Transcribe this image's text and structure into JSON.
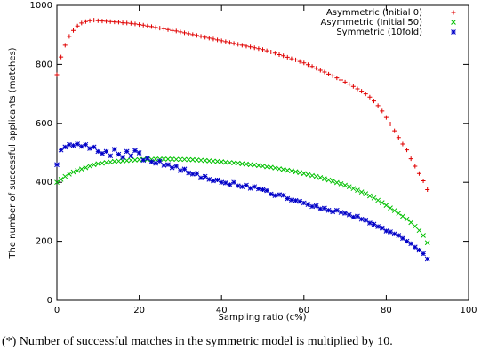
{
  "chart_data": {
    "type": "scatter",
    "xlabel": "Sampling ratio (c%)",
    "ylabel": "The number of successful applicants (matches)",
    "caption": "(*) Number of successful matches in the symmetric model is multiplied by 10.",
    "xlim": [
      0,
      100
    ],
    "xticks": [
      0,
      20,
      40,
      60,
      80,
      100
    ],
    "ylim": [
      0,
      1000
    ],
    "yticks": [
      0,
      200,
      400,
      600,
      800,
      1000
    ],
    "legend": "top-right",
    "x": [
      0,
      1,
      2,
      3,
      4,
      5,
      6,
      7,
      8,
      9,
      10,
      11,
      12,
      13,
      14,
      15,
      16,
      17,
      18,
      19,
      20,
      21,
      22,
      23,
      24,
      25,
      26,
      27,
      28,
      29,
      30,
      31,
      32,
      33,
      34,
      35,
      36,
      37,
      38,
      39,
      40,
      41,
      42,
      43,
      44,
      45,
      46,
      47,
      48,
      49,
      50,
      51,
      52,
      53,
      54,
      55,
      56,
      57,
      58,
      59,
      60,
      61,
      62,
      63,
      64,
      65,
      66,
      67,
      68,
      69,
      70,
      71,
      72,
      73,
      74,
      75,
      76,
      77,
      78,
      79,
      80,
      81,
      82,
      83,
      84,
      85,
      86,
      87,
      88,
      89,
      90
    ],
    "series": [
      {
        "name": "Asymmetric (Initial 0)",
        "color": "#e00000",
        "marker": "plus",
        "values": [
          765,
          825,
          865,
          895,
          915,
          930,
          940,
          945,
          948,
          950,
          948,
          947,
          946,
          945,
          944,
          943,
          941,
          940,
          939,
          937,
          935,
          933,
          930,
          928,
          925,
          923,
          921,
          918,
          915,
          913,
          910,
          907,
          904,
          901,
          898,
          895,
          892,
          889,
          886,
          883,
          880,
          877,
          874,
          871,
          868,
          865,
          862,
          859,
          856,
          853,
          850,
          846,
          842,
          838,
          833,
          829,
          824,
          819,
          815,
          810,
          805,
          799,
          793,
          787,
          780,
          774,
          767,
          761,
          754,
          747,
          740,
          733,
          725,
          717,
          709,
          700,
          689,
          676,
          660,
          642,
          620,
          598,
          575,
          552,
          530,
          510,
          480,
          455,
          430,
          405,
          375
        ]
      },
      {
        "name": "Asymmetric (Initial 50)",
        "color": "#00c000",
        "marker": "cross",
        "values": [
          400,
          410,
          420,
          428,
          435,
          440,
          445,
          450,
          455,
          460,
          463,
          465,
          467,
          469,
          471,
          472,
          473,
          474,
          475,
          476,
          477,
          478,
          478,
          478,
          479,
          479,
          479,
          479,
          479,
          478,
          478,
          478,
          477,
          477,
          476,
          475,
          474,
          473,
          472,
          471,
          470,
          468,
          467,
          466,
          465,
          463,
          462,
          460,
          459,
          457,
          455,
          453,
          451,
          449,
          446,
          444,
          441,
          439,
          436,
          433,
          430,
          427,
          423,
          420,
          416,
          412,
          408,
          404,
          399,
          395,
          390,
          385,
          379,
          373,
          367,
          361,
          354,
          347,
          339,
          331,
          322,
          313,
          304,
          295,
          285,
          275,
          264,
          251,
          237,
          220,
          195
        ]
      },
      {
        "name": "Symmetric (10fold)",
        "color": "#0000c8",
        "marker": "star",
        "values": [
          460,
          510,
          520,
          528,
          525,
          530,
          522,
          528,
          515,
          520,
          505,
          498,
          505,
          490,
          512,
          495,
          485,
          505,
          490,
          508,
          500,
          475,
          482,
          470,
          465,
          472,
          458,
          460,
          450,
          455,
          440,
          445,
          432,
          428,
          430,
          415,
          420,
          410,
          405,
          408,
          400,
          398,
          392,
          400,
          388,
          385,
          390,
          380,
          385,
          378,
          375,
          372,
          360,
          355,
          358,
          356,
          345,
          340,
          338,
          335,
          330,
          325,
          318,
          320,
          310,
          312,
          305,
          300,
          305,
          298,
          295,
          290,
          282,
          285,
          275,
          272,
          262,
          258,
          250,
          245,
          235,
          232,
          225,
          220,
          210,
          200,
          192,
          180,
          170,
          158,
          140
        ]
      }
    ]
  }
}
